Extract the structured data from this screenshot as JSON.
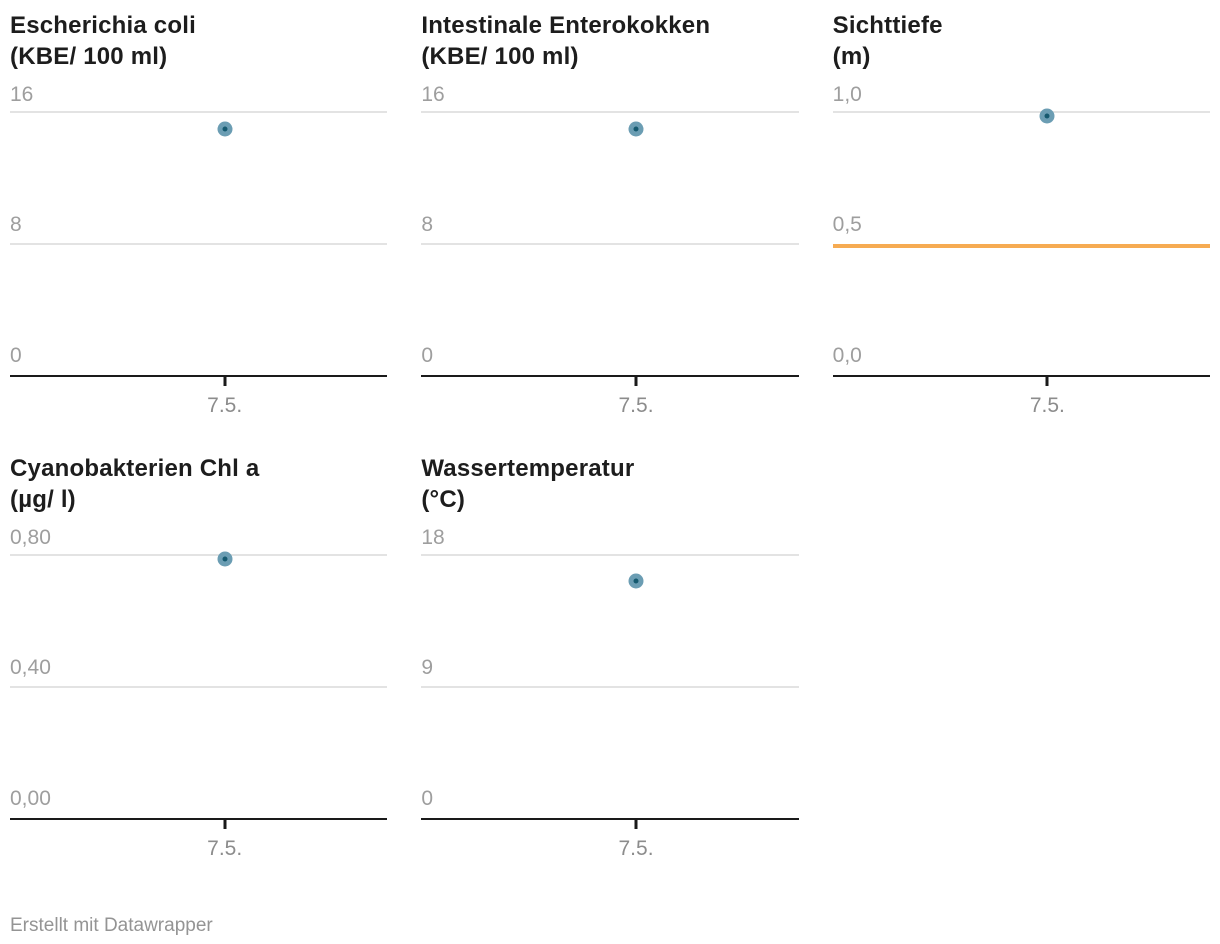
{
  "footer": {
    "credit": "Erstellt mit Datawrapper"
  },
  "colors": {
    "point_fill": "#6B9DB3",
    "point_core": "#15596F",
    "threshold_line": "#F6AB52",
    "gridline": "#e3e3e3",
    "axis_line": "#1a1a1a",
    "title_text": "#1d1d1d",
    "label_text": "#9e9e9e"
  },
  "chart_data": {
    "type": "scatter",
    "layout": {
      "grid": "3 columns x 2 rows of small multiples",
      "x_tick_percent": 56.9,
      "grid_on": true,
      "legend": "none"
    },
    "x_tick_label": "7.5.",
    "panels": [
      {
        "title": "Escherichia coli",
        "unit": "(KBE/ 100 ml)",
        "y_ticks": {
          "top": "16",
          "mid": "8",
          "base": "0"
        },
        "y_max": 16,
        "point": {
          "x_label": "7.5.",
          "y": 15
        },
        "threshold": null
      },
      {
        "title": "Intestinale Enterokokken",
        "unit": "(KBE/ 100 ml)",
        "y_ticks": {
          "top": "16",
          "mid": "8",
          "base": "0"
        },
        "y_max": 16,
        "point": {
          "x_label": "7.5.",
          "y": 15
        },
        "threshold": null
      },
      {
        "title": "Sichttiefe",
        "unit": "(m)",
        "y_ticks": {
          "top": "1,0",
          "mid": "0,5",
          "base": "0,0"
        },
        "y_max": 1.0,
        "point": {
          "x_label": "7.5.",
          "y": 0.99
        },
        "threshold": {
          "value": 0.5,
          "color": "#F6AB52"
        }
      },
      {
        "title": "Cyanobakterien Chl a",
        "unit": "(µg/ l)",
        "y_ticks": {
          "top": "0,80",
          "mid": "0,40",
          "base": "0,00"
        },
        "y_max": 0.8,
        "point": {
          "x_label": "7.5.",
          "y": 0.79
        },
        "threshold": null
      },
      {
        "title": "Wassertemperatur",
        "unit": "(°C)",
        "y_ticks": {
          "top": "18",
          "mid": "9",
          "base": "0"
        },
        "y_max": 18,
        "point": {
          "x_label": "7.5.",
          "y": 16.3
        },
        "threshold": null
      }
    ]
  }
}
